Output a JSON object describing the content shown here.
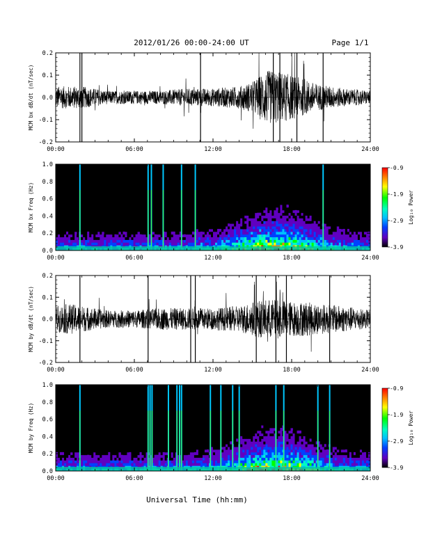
{
  "header": {
    "title": "2012/01/26  00:00-24:00 UT",
    "page": "Page 1/1"
  },
  "footer": {
    "xlabel": "Universal Time (hh:mm)"
  },
  "colorbar": {
    "label": "Log₁₀ Power",
    "ticks": [
      "-0.9",
      "-1.9",
      "-2.9",
      "-3.9"
    ],
    "colors": [
      "#ff0000",
      "#ff8000",
      "#ffff00",
      "#00ff00",
      "#00ffc0",
      "#00c0ff",
      "#0040ff",
      "#6000c0",
      "#000000"
    ]
  },
  "chart_data": [
    {
      "type": "line",
      "ylabel": "MCM bx dB/dt (nT/sec)",
      "xlim": [
        0,
        24
      ],
      "ylim": [
        -0.2,
        0.2
      ],
      "xticks": [
        "00:00",
        "06:00",
        "12:00",
        "18:00",
        "24:00"
      ],
      "yticks": [
        "-0.2",
        "-0.1",
        "0.0",
        "0.1",
        "0.2"
      ],
      "amplitude_envelope": {
        "hours": [
          0,
          2,
          4,
          6,
          8,
          10,
          12,
          14,
          15,
          16,
          17,
          18,
          19,
          20,
          22,
          24
        ],
        "half_range": [
          0.05,
          0.05,
          0.03,
          0.03,
          0.03,
          0.04,
          0.04,
          0.05,
          0.07,
          0.12,
          0.12,
          0.1,
          0.08,
          0.06,
          0.04,
          0.03
        ]
      },
      "spikes_hours": [
        1.85,
        2.0,
        11.05,
        16.6,
        17.1,
        18.4,
        20.4
      ]
    },
    {
      "type": "heatmap",
      "ylabel": "MCM bx Freq (Hz)",
      "xlim": [
        0,
        24
      ],
      "ylim": [
        0.0,
        1.0
      ],
      "xticks": [
        "00:00",
        "06:00",
        "12:00",
        "18:00",
        "24:00"
      ],
      "yticks": [
        "0.0",
        "0.2",
        "0.4",
        "0.6",
        "0.8",
        "1.0"
      ],
      "zlabel": "Log10 Power",
      "zlim": [
        -3.9,
        -0.9
      ],
      "broadband_lines_hours": [
        1.85,
        7.05,
        7.3,
        8.2,
        9.6,
        10.65,
        20.4
      ],
      "activity_peak_hours": [
        15.5,
        19.0
      ]
    },
    {
      "type": "line",
      "ylabel": "MCM by dB/dt (nT/sec)",
      "xlim": [
        0,
        24
      ],
      "ylim": [
        -0.2,
        0.2
      ],
      "xticks": [
        "00:00",
        "06:00",
        "12:00",
        "18:00",
        "24:00"
      ],
      "yticks": [
        "-0.2",
        "-0.1",
        "0.0",
        "0.1",
        "0.2"
      ],
      "amplitude_envelope": {
        "hours": [
          0,
          1,
          2,
          4,
          6,
          8,
          10,
          12,
          14,
          15,
          16,
          17,
          18,
          19,
          20,
          22,
          24
        ],
        "half_range": [
          0.06,
          0.07,
          0.06,
          0.04,
          0.04,
          0.05,
          0.05,
          0.05,
          0.06,
          0.08,
          0.09,
          0.09,
          0.08,
          0.08,
          0.07,
          0.06,
          0.04
        ]
      },
      "spikes_hours": [
        1.85,
        7.05,
        10.3,
        10.65,
        15.3,
        16.8,
        17.6,
        20.9
      ]
    },
    {
      "type": "heatmap",
      "ylabel": "MCM by Freq (Hz)",
      "xlim": [
        0,
        24
      ],
      "ylim": [
        0.0,
        1.0
      ],
      "xticks": [
        "00:00",
        "06:00",
        "12:00",
        "18:00",
        "24:00"
      ],
      "yticks": [
        "0.0",
        "0.2",
        "0.4",
        "0.6",
        "0.8",
        "1.0"
      ],
      "zlabel": "Log10 Power",
      "zlim": [
        -3.9,
        -0.9
      ],
      "broadband_lines_hours": [
        1.85,
        7.05,
        7.2,
        7.35,
        8.6,
        9.25,
        9.45,
        9.6,
        11.8,
        12.6,
        13.5,
        14.0,
        16.8,
        17.4,
        20.0,
        20.9
      ],
      "activity_peak_hours": [
        15.5,
        19.0
      ]
    }
  ]
}
